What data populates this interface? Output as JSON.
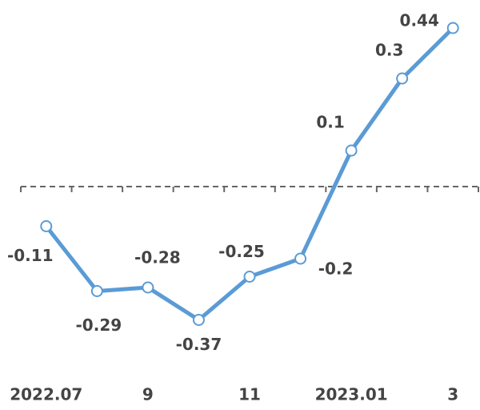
{
  "chart_data": {
    "type": "line",
    "categories": [
      "2022.07",
      null,
      "9",
      null,
      "11",
      null,
      "2023.01",
      null,
      "3"
    ],
    "series": [
      {
        "color": "#5b9bd5",
        "values": [
          -0.11,
          -0.29,
          -0.28,
          -0.37,
          -0.25,
          -0.2,
          0.1,
          0.3,
          0.44
        ]
      }
    ],
    "ylim": [
      -0.5,
      0.5
    ]
  }
}
